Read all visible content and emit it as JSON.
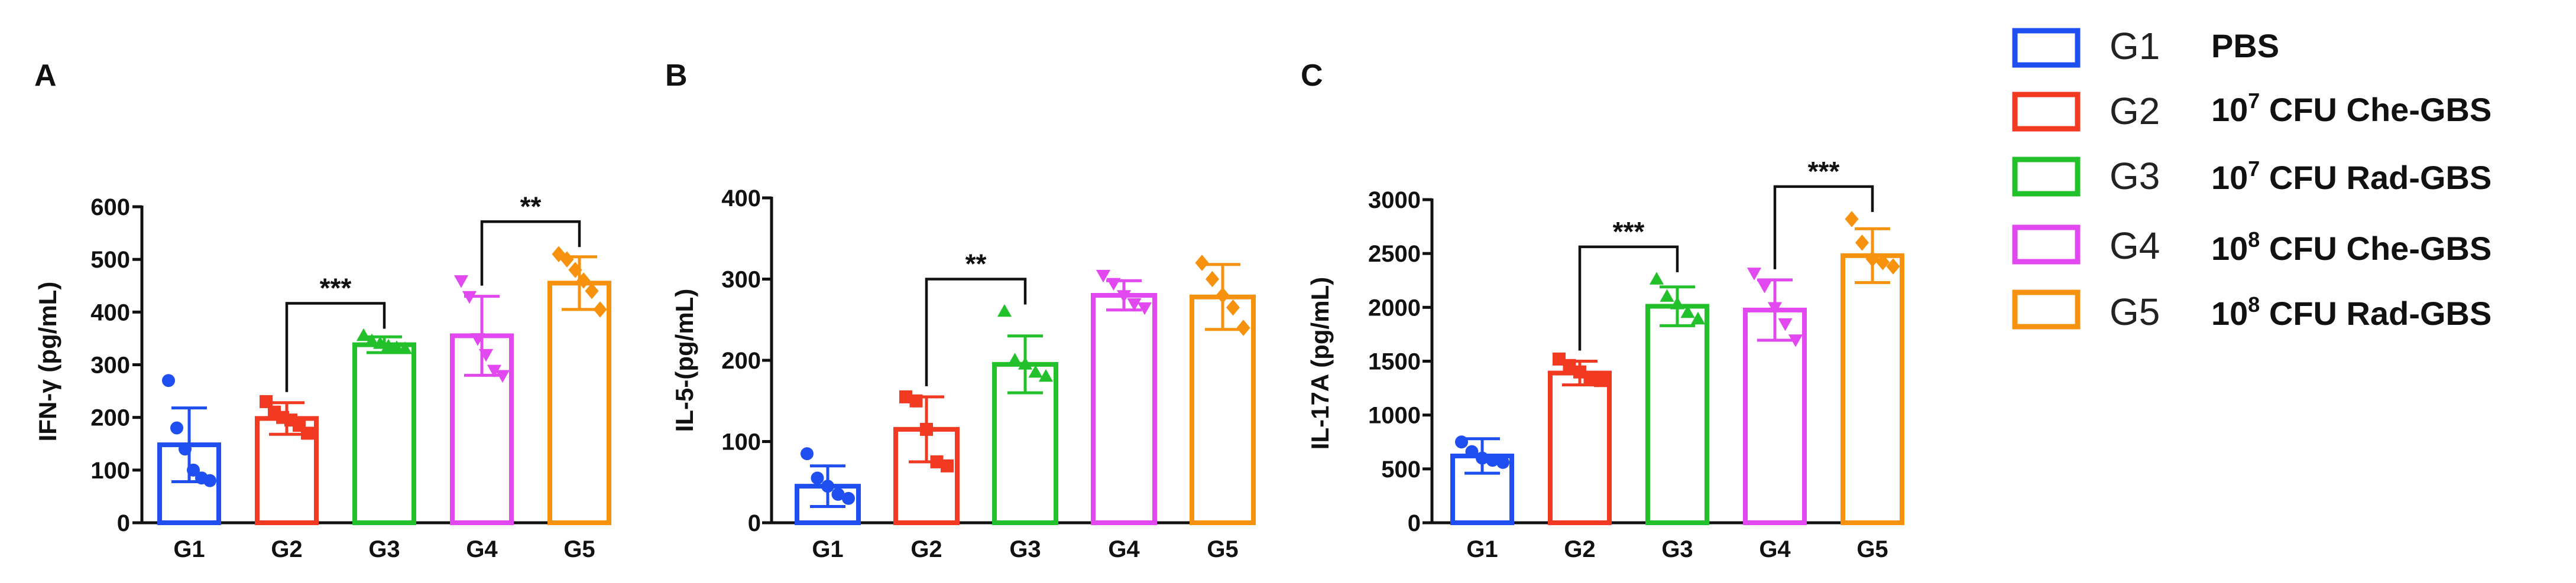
{
  "legend": {
    "items": [
      {
        "group": "G1",
        "color": "#1f4ff0",
        "desc_main": "PBS",
        "desc_sup": "",
        "desc_tail": ""
      },
      {
        "group": "G2",
        "color": "#f23a22",
        "desc_main": "10",
        "desc_sup": "7",
        "desc_tail": " CFU Che-GBS"
      },
      {
        "group": "G3",
        "color": "#22c02a",
        "desc_main": "10",
        "desc_sup": "7",
        "desc_tail": " CFU  Rad-GBS"
      },
      {
        "group": "G4",
        "color": "#e148f0",
        "desc_main": "10",
        "desc_sup": "8",
        "desc_tail": " CFU  Che-GBS"
      },
      {
        "group": "G5",
        "color": "#f7920f",
        "desc_main": "10",
        "desc_sup": "8",
        "desc_tail": " CFU  Rad-GBS"
      }
    ]
  },
  "chart_data": [
    {
      "type": "bar",
      "panel_label": "A",
      "title": "",
      "xlabel": "",
      "ylabel": "IFN-γ (pg/mL)",
      "categories": [
        "G1",
        "G2",
        "G3",
        "G4",
        "G5"
      ],
      "colors": [
        "#1f4ff0",
        "#f23a22",
        "#22c02a",
        "#e148f0",
        "#f7920f"
      ],
      "markers": [
        "circle",
        "square",
        "triangle",
        "triangle-down",
        "diamond"
      ],
      "values": [
        148,
        198,
        338,
        355,
        455
      ],
      "errors": [
        70,
        30,
        15,
        75,
        50
      ],
      "points": [
        [
          270,
          180,
          140,
          100,
          85,
          80
        ],
        [
          230,
          210,
          200,
          195,
          185,
          170
        ],
        [
          355,
          345,
          340,
          335,
          332,
          330
        ],
        [
          460,
          430,
          350,
          320,
          290,
          280
        ],
        [
          510,
          500,
          480,
          460,
          440,
          405
        ]
      ],
      "ylim": [
        0,
        600
      ],
      "yticks": [
        0,
        100,
        200,
        300,
        400,
        500,
        600
      ],
      "significance": [
        {
          "from": 2,
          "to": 3,
          "label": "***"
        },
        {
          "from": 4,
          "to": 5,
          "label": "**"
        }
      ]
    },
    {
      "type": "bar",
      "panel_label": "B",
      "title": "",
      "xlabel": "",
      "ylabel": "IL-5-(pg/mL)",
      "categories": [
        "G1",
        "G2",
        "G3",
        "G4",
        "G5"
      ],
      "colors": [
        "#1f4ff0",
        "#f23a22",
        "#22c02a",
        "#e148f0",
        "#f7920f"
      ],
      "markers": [
        "circle",
        "square",
        "triangle",
        "triangle-down",
        "diamond"
      ],
      "values": [
        45,
        115,
        195,
        280,
        278
      ],
      "errors": [
        25,
        40,
        35,
        18,
        40
      ],
      "points": [
        [
          85,
          55,
          45,
          35,
          30
        ],
        [
          155,
          150,
          115,
          75,
          70
        ],
        [
          260,
          200,
          195,
          185,
          180
        ],
        [
          305,
          295,
          280,
          270,
          265
        ],
        [
          320,
          300,
          280,
          265,
          240
        ]
      ],
      "ylim": [
        0,
        400
      ],
      "yticks": [
        0,
        100,
        200,
        300,
        400
      ],
      "significance": [
        {
          "from": 2,
          "to": 3,
          "label": "**"
        }
      ]
    },
    {
      "type": "bar",
      "panel_label": "C",
      "title": "",
      "xlabel": "",
      "ylabel": "IL-17A (pg/mL)",
      "categories": [
        "G1",
        "G2",
        "G3",
        "G4",
        "G5"
      ],
      "colors": [
        "#1f4ff0",
        "#f23a22",
        "#22c02a",
        "#e148f0",
        "#f7920f"
      ],
      "markers": [
        "circle",
        "square",
        "triangle",
        "triangle-down",
        "diamond"
      ],
      "values": [
        620,
        1390,
        2010,
        1975,
        2480
      ],
      "errors": [
        160,
        110,
        180,
        280,
        250
      ],
      "points": [
        [
          750,
          660,
          600,
          580,
          560
        ],
        [
          1520,
          1460,
          1400,
          1350,
          1320
        ],
        [
          2260,
          2100,
          2030,
          1950,
          1890
        ],
        [
          2320,
          2200,
          2000,
          1850,
          1700
        ],
        [
          2820,
          2600,
          2450,
          2420,
          2380
        ]
      ],
      "ylim": [
        0,
        3000
      ],
      "yticks": [
        0,
        500,
        1000,
        1500,
        2000,
        2500,
        3000
      ],
      "significance": [
        {
          "from": 2,
          "to": 3,
          "label": "***"
        },
        {
          "from": 4,
          "to": 5,
          "label": "***"
        }
      ]
    }
  ]
}
